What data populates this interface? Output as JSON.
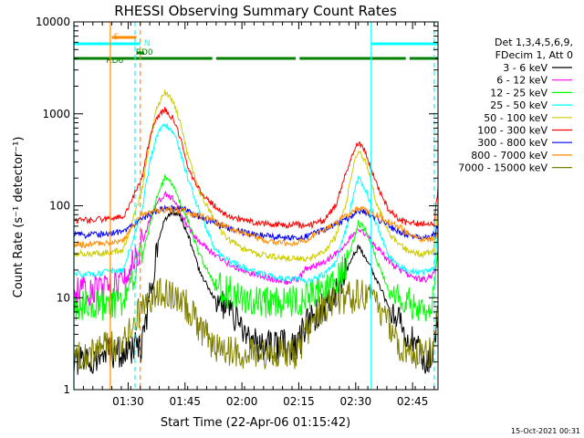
{
  "chart_data": {
    "type": "line",
    "title": "RHESSI Observing Summary Count Rates",
    "xlabel": "Start Time (22-Apr-06 01:15:42)",
    "ylabel": "Count Rate (s⁻¹ detector⁻¹)",
    "yscale": "log",
    "ylim": [
      1,
      10000
    ],
    "xlim_minutes": [
      0,
      96
    ],
    "x_ticks": [
      {
        "label": "01:30",
        "t": 14.3
      },
      {
        "label": "01:45",
        "t": 29.3
      },
      {
        "label": "02:00",
        "t": 44.3
      },
      {
        "label": "02:15",
        "t": 59.3
      },
      {
        "label": "02:30",
        "t": 74.3
      },
      {
        "label": "02:45",
        "t": 89.3
      }
    ],
    "y_ticks": [
      {
        "label": "1",
        "v": 1
      },
      {
        "label": "10",
        "v": 10
      },
      {
        "label": "100",
        "v": 100
      },
      {
        "label": "1000",
        "v": 1000
      },
      {
        "label": "10000",
        "v": 10000
      }
    ],
    "legend_header": [
      "Det 1,3,4,5,6,9,",
      "FDecim 1, Att 0"
    ],
    "timestamp": "15-Oct-2021 00:31",
    "series": [
      {
        "name": "3 - 6 keV",
        "color": "#000000",
        "x": [
          0,
          4,
          9,
          13,
          18,
          20,
          22,
          24,
          26,
          28,
          30,
          33,
          37,
          40,
          44,
          48,
          52,
          56,
          59,
          61,
          63,
          66,
          69,
          72,
          74,
          75,
          77,
          80,
          83,
          86,
          88,
          91,
          93,
          95,
          96
        ],
        "y": [
          2,
          2,
          2.5,
          2.5,
          3,
          10,
          40,
          70,
          85,
          80,
          50,
          20,
          10,
          8,
          5,
          3,
          3,
          3,
          3,
          5,
          6,
          8,
          12,
          20,
          30,
          35,
          28,
          15,
          8,
          5,
          4,
          3,
          2,
          3,
          8
        ]
      },
      {
        "name": "6 - 12 keV",
        "color": "#ff00ff",
        "x": [
          0,
          4,
          9,
          13,
          18,
          20,
          22,
          24,
          26,
          28,
          30,
          33,
          37,
          40,
          44,
          48,
          52,
          56,
          59,
          61,
          63,
          66,
          69,
          72,
          74,
          75,
          77,
          80,
          83,
          86,
          88,
          91,
          93,
          95,
          96
        ],
        "y": [
          12,
          12,
          13,
          14,
          40,
          70,
          110,
          135,
          120,
          90,
          60,
          40,
          30,
          24,
          20,
          18,
          16,
          15,
          16,
          20,
          22,
          24,
          30,
          40,
          50,
          55,
          50,
          35,
          25,
          20,
          18,
          16,
          16,
          18,
          30
        ]
      },
      {
        "name": "12 - 25 keV",
        "color": "#00ff00",
        "x": [
          0,
          4,
          9,
          13,
          18,
          20,
          22,
          24,
          26,
          28,
          30,
          33,
          37,
          40,
          44,
          48,
          52,
          56,
          59,
          61,
          63,
          66,
          69,
          72,
          74,
          75,
          77,
          80,
          83,
          86,
          88,
          91,
          93,
          95,
          96
        ],
        "y": [
          8,
          8,
          8.5,
          9,
          30,
          60,
          130,
          200,
          170,
          110,
          70,
          30,
          14,
          12,
          10,
          9,
          9,
          9,
          9,
          10,
          11,
          12,
          14,
          25,
          45,
          65,
          55,
          25,
          12,
          10,
          9,
          8,
          8,
          9,
          25
        ]
      },
      {
        "name": "25 - 50 keV",
        "color": "#00ffff",
        "x": [
          0,
          4,
          9,
          13,
          18,
          20,
          22,
          24,
          26,
          28,
          30,
          33,
          37,
          40,
          44,
          48,
          52,
          56,
          59,
          61,
          63,
          66,
          69,
          72,
          74,
          75,
          77,
          80,
          83,
          86,
          88,
          91,
          93,
          95,
          96
        ],
        "y": [
          18,
          18,
          19,
          20,
          90,
          300,
          600,
          780,
          650,
          400,
          200,
          90,
          35,
          26,
          22,
          19,
          17,
          16,
          16,
          15,
          16,
          18,
          24,
          60,
          150,
          200,
          150,
          60,
          28,
          22,
          20,
          19,
          19,
          20,
          60
        ]
      },
      {
        "name": "50 - 100 keV",
        "color": "#cccc00",
        "x": [
          0,
          4,
          9,
          13,
          18,
          20,
          22,
          24,
          26,
          28,
          30,
          33,
          37,
          40,
          44,
          48,
          52,
          56,
          59,
          61,
          63,
          66,
          69,
          72,
          74,
          75,
          77,
          80,
          83,
          86,
          88,
          91,
          93,
          95,
          96
        ],
        "y": [
          30,
          30,
          31,
          33,
          150,
          500,
          1200,
          1700,
          1400,
          800,
          350,
          150,
          70,
          45,
          35,
          30,
          28,
          27,
          27,
          26,
          28,
          32,
          45,
          120,
          300,
          400,
          300,
          100,
          50,
          38,
          32,
          30,
          30,
          32,
          100
        ]
      },
      {
        "name": "100 - 300 keV",
        "color": "#ff0000",
        "x": [
          0,
          4,
          9,
          13,
          18,
          20,
          22,
          24,
          26,
          28,
          30,
          33,
          37,
          40,
          44,
          48,
          52,
          56,
          59,
          61,
          63,
          66,
          69,
          72,
          74,
          75,
          77,
          80,
          83,
          86,
          88,
          91,
          93,
          95,
          96
        ],
        "y": [
          70,
          70,
          72,
          75,
          200,
          550,
          950,
          1100,
          900,
          550,
          260,
          150,
          100,
          80,
          70,
          65,
          63,
          62,
          62,
          60,
          62,
          70,
          100,
          250,
          420,
          480,
          380,
          160,
          90,
          70,
          65,
          64,
          64,
          66,
          150
        ]
      },
      {
        "name": "300 - 800 keV",
        "color": "#0000ff",
        "x": [
          0,
          4,
          9,
          13,
          18,
          20,
          22,
          24,
          26,
          28,
          30,
          33,
          37,
          40,
          44,
          48,
          52,
          56,
          59,
          61,
          63,
          66,
          69,
          72,
          74,
          75,
          77,
          80,
          83,
          86,
          88,
          91,
          93,
          95,
          96
        ],
        "y": [
          48,
          48,
          50,
          52,
          72,
          80,
          88,
          95,
          96,
          94,
          88,
          75,
          65,
          58,
          52,
          48,
          46,
          44,
          44,
          46,
          50,
          55,
          62,
          72,
          82,
          88,
          85,
          72,
          60,
          52,
          48,
          46,
          46,
          48,
          60
        ]
      },
      {
        "name": "800 - 7000 keV",
        "color": "#ff8c00",
        "x": [
          0,
          4,
          9,
          13,
          18,
          20,
          22,
          24,
          26,
          28,
          30,
          33,
          37,
          40,
          44,
          48,
          52,
          56,
          59,
          61,
          63,
          66,
          69,
          72,
          74,
          75,
          77,
          80,
          83,
          86,
          88,
          91,
          93,
          95,
          96
        ],
        "y": [
          38,
          38,
          40,
          42,
          82,
          85,
          88,
          90,
          90,
          88,
          85,
          78,
          68,
          60,
          52,
          45,
          41,
          39,
          39,
          42,
          48,
          56,
          66,
          78,
          88,
          92,
          90,
          80,
          68,
          58,
          50,
          45,
          43,
          44,
          48
        ]
      },
      {
        "name": "7000 - 15000 keV",
        "color": "#808000",
        "x": [
          0,
          4,
          9,
          13,
          18,
          20,
          22,
          24,
          26,
          28,
          30,
          33,
          37,
          40,
          44,
          48,
          52,
          56,
          59,
          61,
          63,
          66,
          69,
          72,
          74,
          75,
          77,
          80,
          83,
          86,
          88,
          91,
          93,
          95,
          96
        ],
        "y": [
          2.5,
          2.5,
          3,
          3,
          8,
          10,
          11,
          11,
          11,
          10,
          8,
          5,
          3,
          2.5,
          2.5,
          2.5,
          2.5,
          2.5,
          2.5,
          4,
          6,
          8,
          9,
          10,
          10,
          11,
          10,
          8,
          5,
          3,
          2.5,
          2.5,
          2.5,
          3,
          7
        ]
      }
    ],
    "flags": [
      {
        "label": "S",
        "color": "#ff8c00",
        "segments": [
          [
            10,
            16.5
          ]
        ]
      },
      {
        "label": "N",
        "color": "#00ffff",
        "segments": [
          [
            0,
            17.5
          ],
          [
            78.5,
            96
          ]
        ]
      },
      {
        "label": "RD0",
        "color": "#008000",
        "segments": [
          [
            16.5,
            18.5
          ]
        ]
      },
      {
        "label": "RD6",
        "color": "#008000",
        "segments": [
          [
            0,
            16
          ],
          [
            16,
            36.5
          ],
          [
            37.5,
            58.5
          ],
          [
            59.5,
            87.5
          ],
          [
            88.5,
            96
          ]
        ]
      }
    ],
    "vertical_markers": [
      {
        "t": 0,
        "style": "solid",
        "color": "#00ffff"
      },
      {
        "t": 9.6,
        "style": "solid",
        "color": "#ff8c00"
      },
      {
        "t": 16.1,
        "style": "dashed",
        "color": "#00ffff"
      },
      {
        "t": 17.5,
        "style": "dashed",
        "color": "#ff8c00"
      },
      {
        "t": 78.4,
        "style": "solid",
        "color": "#00ffff"
      },
      {
        "t": 95.0,
        "style": "dashed",
        "color": "#00ffff"
      }
    ]
  }
}
